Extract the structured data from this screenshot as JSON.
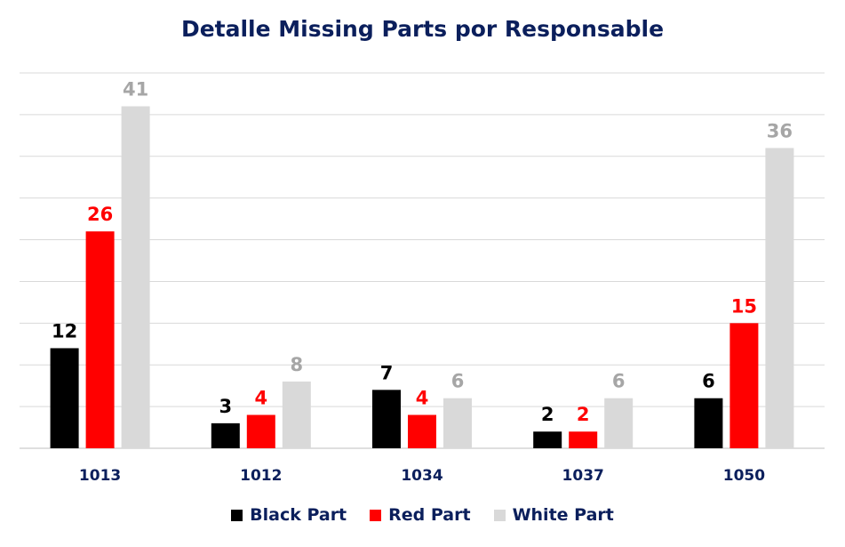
{
  "chart_data": {
    "type": "bar",
    "title": "Detalle Missing Parts por Responsable",
    "categories": [
      "1013",
      "1012",
      "1034",
      "1037",
      "1050"
    ],
    "series": [
      {
        "name": "Black Part",
        "color": "#000000",
        "label_color": "#000000",
        "values": [
          12,
          3,
          7,
          2,
          6
        ]
      },
      {
        "name": "Red Part",
        "color": "#ff0000",
        "label_color": "#ff0000",
        "values": [
          26,
          4,
          4,
          2,
          15
        ]
      },
      {
        "name": "White Part",
        "color": "#d9d9d9",
        "label_color": "#a6a6a6",
        "values": [
          41,
          8,
          6,
          6,
          36
        ]
      }
    ],
    "ylim": [
      0,
      45
    ],
    "grid": true,
    "legend_position": "bottom",
    "axis_text_color": "#0b1f5c"
  }
}
